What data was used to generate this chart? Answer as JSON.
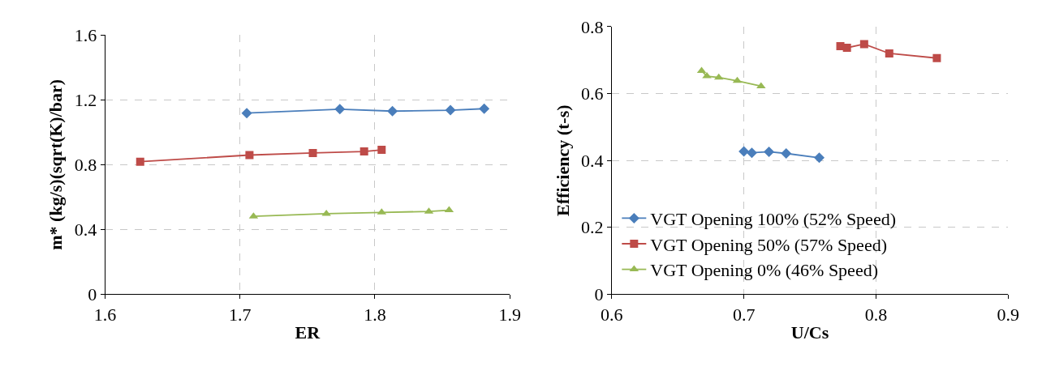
{
  "chart_data": [
    {
      "type": "line",
      "xlabel": "ER",
      "ylabel": "m* (kg/s)(sqrt(K)/bar)",
      "xlim": [
        1.6,
        1.9
      ],
      "xticks": [
        1.6,
        1.7,
        1.8,
        1.9
      ],
      "ylim": [
        0,
        1.6
      ],
      "yticks": [
        0,
        {
          "value": 0.4,
          "label": "0.4"
        },
        {
          "value": 0.8,
          "label": "0.8"
        },
        {
          "value": 1.2,
          "label": "1.2"
        },
        {
          "value": 1.6,
          "label": "1.6"
        }
      ],
      "grid": true,
      "legend": false,
      "series": [
        {
          "color": "#4a7ebb",
          "marker": "diamond",
          "x": [
            1.705,
            1.774,
            1.813,
            1.856,
            1.881
          ],
          "values": [
            1.118,
            1.142,
            1.13,
            1.136,
            1.145
          ]
        },
        {
          "color": "#be4b48",
          "marker": "square",
          "x": [
            1.626,
            1.707,
            1.754,
            1.792,
            1.805
          ],
          "values": [
            0.818,
            0.859,
            0.872,
            0.881,
            0.891
          ]
        },
        {
          "color": "#98b954",
          "marker": "triangle",
          "x": [
            1.71,
            1.764,
            1.805,
            1.84,
            1.855
          ],
          "values": [
            0.481,
            0.497,
            0.505,
            0.511,
            0.519
          ]
        }
      ]
    },
    {
      "type": "line",
      "xlabel": "U/Cs",
      "ylabel": "Efficiency (t-s)",
      "xlim": [
        0.6,
        0.9
      ],
      "xticks": [
        0.6,
        0.7,
        0.8,
        0.9
      ],
      "ylim": [
        0,
        0.8
      ],
      "yticks": [
        0,
        0.2,
        0.4,
        0.6,
        0.8
      ],
      "grid": true,
      "legend": "bottom left",
      "series": [
        {
          "name": "VGT Opening 100% (52% Speed)",
          "color": "#4a7ebb",
          "marker": "diamond",
          "x": [
            0.7,
            0.706,
            0.719,
            0.732,
            0.757
          ],
          "values": [
            0.427,
            0.423,
            0.426,
            0.421,
            0.408
          ]
        },
        {
          "name": "VGT Opening 50% (57% Speed)",
          "color": "#be4b48",
          "marker": "square",
          "x": [
            0.773,
            0.778,
            0.791,
            0.81,
            0.846
          ],
          "values": [
            0.742,
            0.737,
            0.748,
            0.72,
            0.706
          ]
        },
        {
          "name": "VGT Opening 0% (46% Speed)",
          "color": "#98b954",
          "marker": "triangle",
          "x": [
            0.668,
            0.672,
            0.681,
            0.695,
            0.713
          ],
          "values": [
            0.668,
            0.652,
            0.648,
            0.638,
            0.622
          ]
        }
      ]
    }
  ]
}
